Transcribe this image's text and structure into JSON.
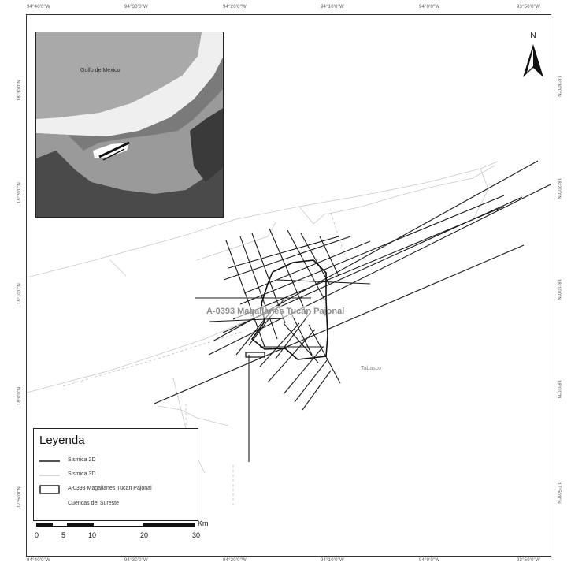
{
  "map": {
    "area_label": "A-0393 Magallanes Tucan Pajonal",
    "place_label": "Tabasco",
    "north_label": "N"
  },
  "inset": {
    "label": "Golfo de México"
  },
  "legend": {
    "title": "Leyenda",
    "items": [
      {
        "label": "Sismica 2D",
        "symbol": "dark-line"
      },
      {
        "label": "Sismica 3D",
        "symbol": "light-line"
      },
      {
        "label": "A-0393 Magallanes Tucan Pajonal",
        "symbol": "box"
      },
      {
        "label": "Cuencas del Sureste",
        "symbol": "none"
      }
    ]
  },
  "scale": {
    "labels": [
      "0",
      "5",
      "10",
      "20",
      "30"
    ],
    "unit": "Km"
  },
  "coordinates": {
    "top": [
      "94°40'0\"W",
      "94°30'0\"W",
      "94°20'0\"W",
      "94°10'0\"W",
      "94°0'0\"W",
      "93°50'0\"W"
    ],
    "bottom": [
      "94°40'0\"W",
      "94°30'0\"W",
      "94°20'0\"W",
      "94°10'0\"W",
      "94°0'0\"W",
      "93°50'0\"W"
    ],
    "left": [
      "18°30'0\"N",
      "18°20'0\"N",
      "18°10'0\"N",
      "18°0'0\"N",
      "17°50'0\"N"
    ],
    "right": [
      "18°30'0\"N",
      "18°20'0\"N",
      "18°10'0\"N",
      "18°0'0\"N",
      "17°50'0\"N"
    ]
  },
  "colors": {
    "line_2d": "#1a1a1a",
    "line_3d": "#bdbdbd",
    "area_box": "#111111",
    "area_label": "#8e8e8e",
    "inset_sea": "#7a7a7a",
    "inset_land": "#9a9a9a",
    "inset_coast": "#f2f2f2"
  }
}
